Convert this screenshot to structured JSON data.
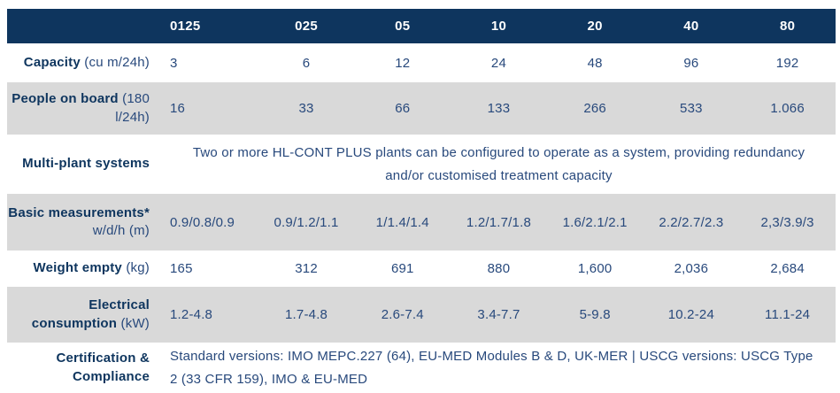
{
  "colors": {
    "header_bg": "#0e355e",
    "header_text": "#ffffff",
    "label_text": "#0e355e",
    "body_text": "#28497c",
    "alt_row_bg": "#d9d9d9"
  },
  "header": {
    "columns": [
      "0125",
      "025",
      "05",
      "10",
      "20",
      "40",
      "80"
    ]
  },
  "rows": {
    "capacity": {
      "label": "Capacity",
      "unit": "(cu m/24h)",
      "values": [
        "3",
        "6",
        "12",
        "24",
        "48",
        "96",
        "192"
      ]
    },
    "people": {
      "label": "People on board",
      "unit": "(180 l/24h)",
      "values": [
        "16",
        "33",
        "66",
        "133",
        "266",
        "533",
        "1.066"
      ]
    },
    "multiplant": {
      "label": "Multi-plant systems",
      "text": "Two or more HL-CONT PLUS plants can be configured to operate as a system, providing redundancy and/or customised treatment capacity"
    },
    "basic": {
      "label": "Basic measurements*",
      "unit": "w/d/h (m)",
      "values": [
        "0.9/0.8/0.9",
        "0.9/1.2/1.1",
        "1/1.4/1.4",
        "1.2/1.7/1.8",
        "1.6/2.1/2.1",
        "2.2/2.7/2.3",
        "2,3/3.9/3"
      ]
    },
    "weight": {
      "label": "Weight empty",
      "unit": "(kg)",
      "values": [
        "165",
        "312",
        "691",
        "880",
        "1,600",
        "2,036",
        "2,684"
      ]
    },
    "electrical": {
      "label": "Electrical consumption",
      "unit": "(kW)",
      "values": [
        "1.2-4.8",
        "1.7-4.8",
        "2.6-7.4",
        "3.4-7.7",
        "5-9.8",
        "10.2-24",
        "11.1-24"
      ]
    },
    "certification": {
      "label": "Certification & Compliance",
      "text": "Standard versions: IMO MEPC.227 (64), EU-MED Modules B & D, UK-MER | USCG versions: USCG Type 2 (33 CFR 159), IMO & EU-MED"
    }
  },
  "chart_data": {
    "type": "table",
    "columns": [
      "0125",
      "025",
      "05",
      "10",
      "20",
      "40",
      "80"
    ],
    "rows": [
      {
        "label": "Capacity (cu m/24h)",
        "values": [
          3,
          6,
          12,
          24,
          48,
          96,
          192
        ]
      },
      {
        "label": "People on board (180 l/24h)",
        "values": [
          16,
          33,
          66,
          133,
          266,
          533,
          1066
        ]
      },
      {
        "label": "Basic measurements* w/d/h (m)",
        "values": [
          "0.9/0.8/0.9",
          "0.9/1.2/1.1",
          "1/1.4/1.4",
          "1.2/1.7/1.8",
          "1.6/2.1/2.1",
          "2.2/2.7/2.3",
          "2,3/3.9/3"
        ]
      },
      {
        "label": "Weight empty (kg)",
        "values": [
          165,
          312,
          691,
          880,
          1600,
          2036,
          2684
        ]
      },
      {
        "label": "Electrical consumption (kW)",
        "values": [
          "1.2-4.8",
          "1.7-4.8",
          "2.6-7.4",
          "3.4-7.7",
          "5-9.8",
          "10.2-24",
          "11.1-24"
        ]
      }
    ]
  }
}
